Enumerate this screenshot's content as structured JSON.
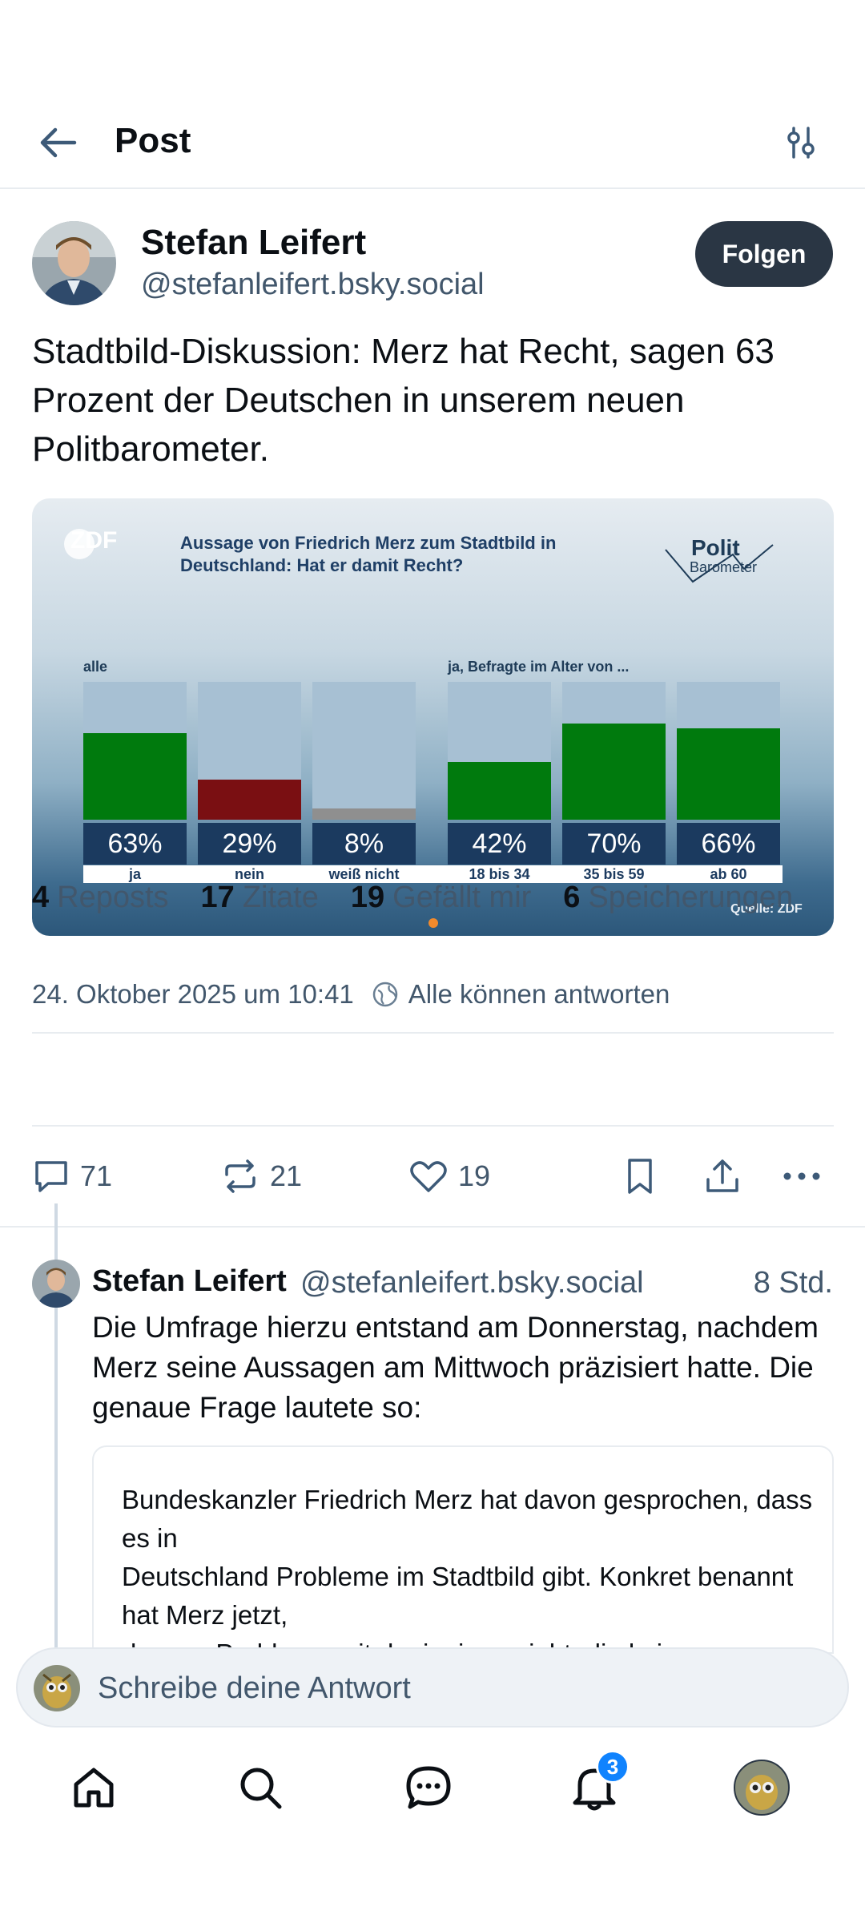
{
  "header": {
    "title": "Post",
    "back_icon": "arrow-left-icon",
    "filter_icon": "sliders-icon"
  },
  "post": {
    "author": {
      "name": "Stefan Leifert",
      "handle": "@stefanleifert.bsky.social"
    },
    "follow_label": "Folgen",
    "text": "Stadtbild-Diskussion: Merz hat Recht, sagen 63 Prozent der Deutschen in unserem neuen Politbarometer.",
    "timestamp": "24. Oktober 2025 um 10:41",
    "reply_setting": "Alle können antworten",
    "stats": {
      "reposts_count": "4",
      "reposts_label": "Reposts",
      "quotes_count": "17",
      "quotes_label": "Zitate",
      "likes_count": "19",
      "likes_label": "Gefällt mir",
      "saves_count": "6",
      "saves_label": "Speicherungen"
    },
    "actions": {
      "replies": "71",
      "reposts": "21",
      "likes": "19"
    }
  },
  "chart": {
    "zdf_logo": "ZDF",
    "title": "Aussage von Friedrich Merz zum Stadtbild in Deutschland: Hat er damit Recht?",
    "brand_top": "Polit",
    "brand_bottom": "Barometer",
    "group_all": "alle",
    "group_age": "ja, Befragte im Alter von ...",
    "source": "Quelle: ZDF",
    "colors": {
      "ja": "#007a0d",
      "nein": "#7a0f12",
      "weiss_nicht": "#8f8f8f",
      "bg_bar": "#a7c0d3"
    }
  },
  "chart_data": {
    "type": "bar",
    "title": "Aussage von Friedrich Merz zum Stadtbild in Deutschland: Hat er damit Recht?",
    "categories": [
      "ja",
      "nein",
      "weiß nicht",
      "18 bis 34",
      "35 bis 59",
      "ab 60"
    ],
    "values": [
      63,
      29,
      8,
      42,
      70,
      66
    ],
    "value_labels": [
      "63%",
      "29%",
      "8%",
      "42%",
      "70%",
      "66%"
    ],
    "ylim": [
      0,
      100
    ]
  },
  "reply": {
    "author": {
      "name": "Stefan Leifert",
      "handle": "@stefanleifert.bsky.social"
    },
    "time": "8 Std.",
    "text": "Die Umfrage hierzu entstand am Donnerstag, nachdem Merz seine Aussagen am Mittwoch präzisiert hatte. Die genaue Frage lautete so:",
    "quote": "Bundeskanzler Friedrich Merz hat davon gesprochen, dass es in\nDeutschland Probleme im Stadtbild gibt. Konkret benannt hat Merz jetzt,\ndass er Probleme mit denjenigen sieht, die keinen"
  },
  "compose": {
    "placeholder": "Schreibe deine Antwort"
  },
  "tabbar": {
    "notifications_badge": "3"
  }
}
